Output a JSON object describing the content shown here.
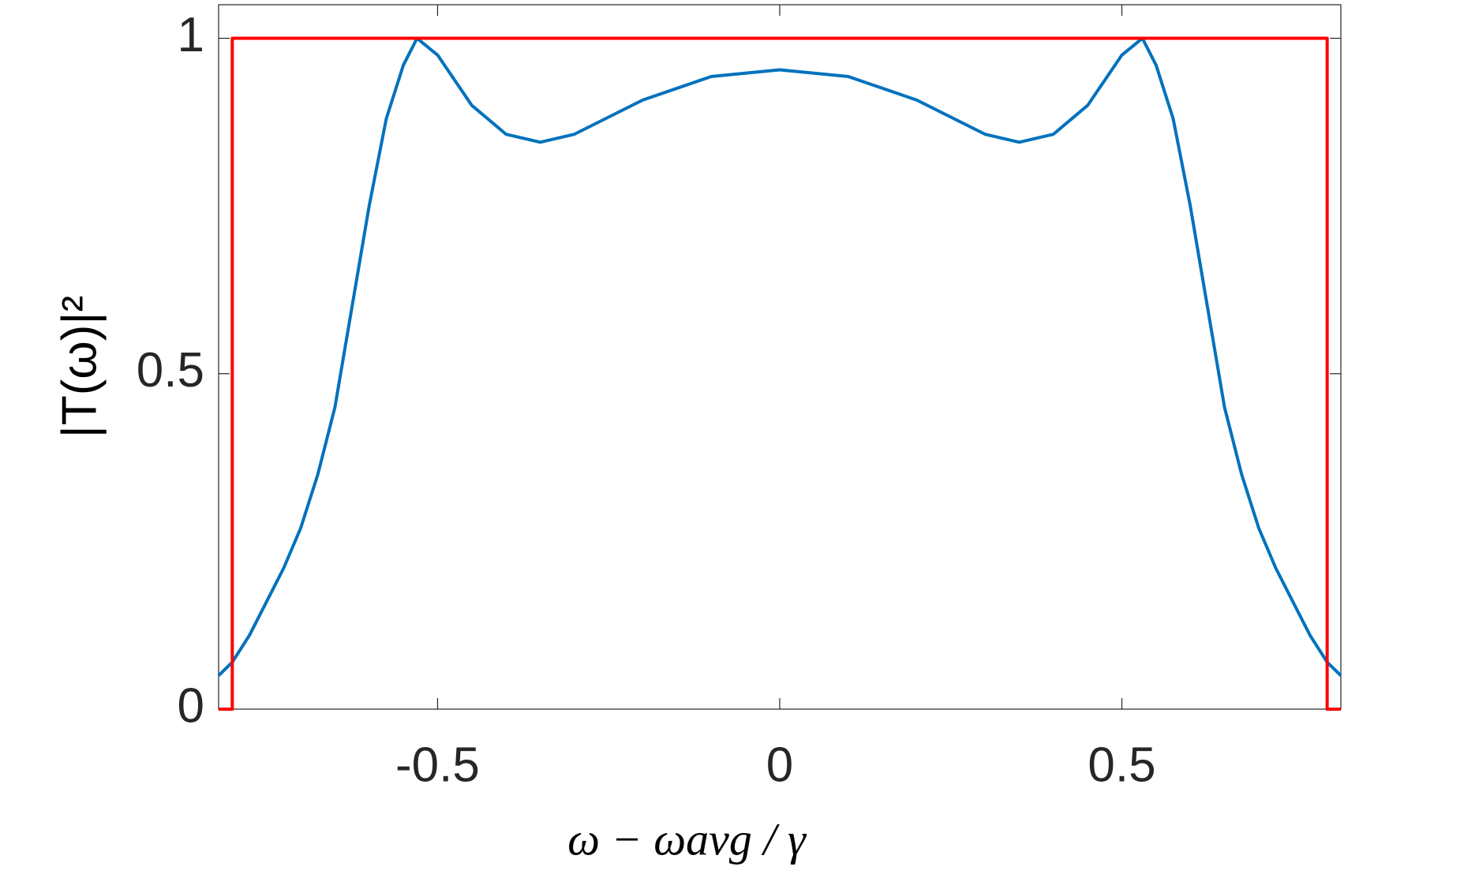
{
  "chart_data": {
    "type": "line",
    "xlabel": "ω − ωavg / γ",
    "ylabel": "|T(ω)|²",
    "xlim": [
      -0.82,
      0.82
    ],
    "ylim": [
      0,
      1.05
    ],
    "xticks": [
      -0.5,
      0,
      0.5
    ],
    "yticks": [
      0,
      0.5,
      1
    ],
    "series": [
      {
        "color": "#0072bd",
        "x": [
          -0.82,
          -0.8,
          -0.775,
          -0.75,
          -0.725,
          -0.7,
          -0.675,
          -0.65,
          -0.625,
          -0.6,
          -0.575,
          -0.55,
          -0.53,
          -0.5,
          -0.45,
          -0.4,
          -0.35,
          -0.3,
          -0.2,
          -0.1,
          0,
          0.1,
          0.2,
          0.3,
          0.35,
          0.4,
          0.45,
          0.5,
          0.53,
          0.55,
          0.575,
          0.6,
          0.625,
          0.65,
          0.675,
          0.7,
          0.725,
          0.75,
          0.775,
          0.8,
          0.82
        ],
        "values": [
          0.05,
          0.07,
          0.11,
          0.16,
          0.21,
          0.27,
          0.35,
          0.45,
          0.6,
          0.75,
          0.88,
          0.96,
          1.0,
          0.975,
          0.9,
          0.857,
          0.845,
          0.857,
          0.908,
          0.943,
          0.953,
          0.943,
          0.908,
          0.857,
          0.845,
          0.857,
          0.9,
          0.975,
          1.0,
          0.96,
          0.88,
          0.75,
          0.6,
          0.45,
          0.35,
          0.27,
          0.21,
          0.16,
          0.11,
          0.07,
          0.05
        ]
      },
      {
        "color": "#ff0000",
        "x": [
          -0.82,
          -0.8,
          -0.8,
          0.8,
          0.8,
          0.82
        ],
        "values": [
          0,
          0,
          1,
          1,
          0,
          0
        ]
      }
    ]
  }
}
